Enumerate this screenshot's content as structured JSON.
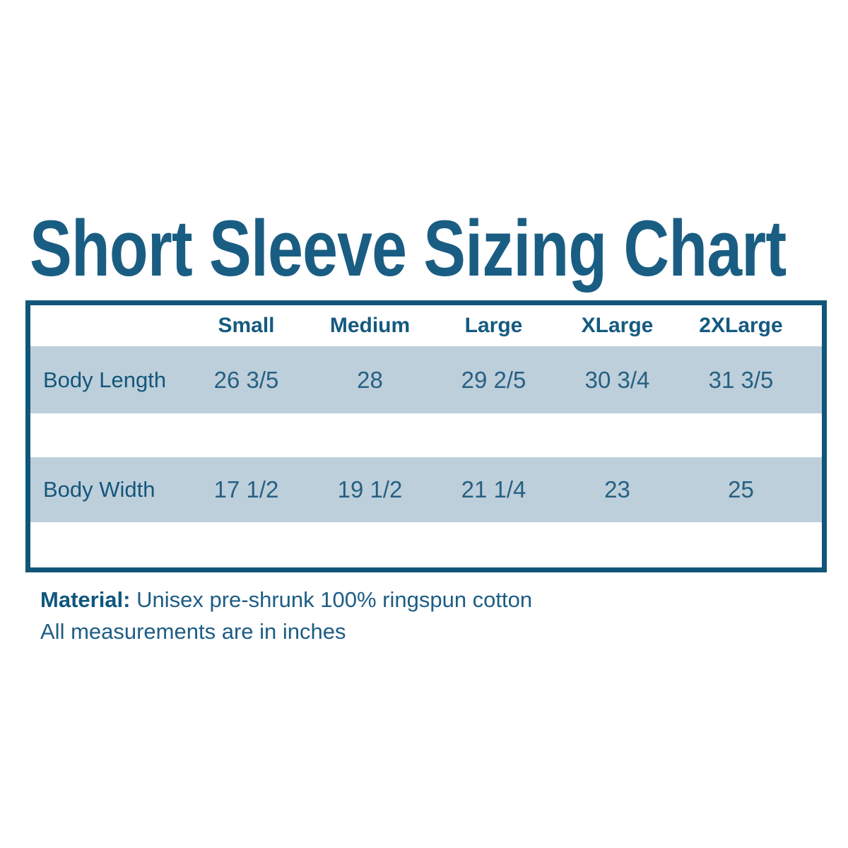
{
  "title": "Short Sleeve Sizing Chart",
  "colors": {
    "accent_dark_teal": "#115679",
    "title_teal": "#1a5d83",
    "header_text_teal": "#155a80",
    "value_text_teal": "#266083",
    "stripe_blue": "#bdcfda",
    "background": "#ffffff"
  },
  "table": {
    "columns": [
      "Small",
      "Medium",
      "Large",
      "XLarge",
      "2XLarge"
    ],
    "rows": [
      {
        "label": "Body Length",
        "values": [
          "26 3/5",
          "28",
          "29 2/5",
          "30 3/4",
          "31 3/5"
        ]
      },
      {
        "label": "Body Width",
        "values": [
          "17 1/2",
          "19 1/2",
          "21 1/4",
          "23",
          "25"
        ]
      }
    ]
  },
  "footer": {
    "material_label": "Material:",
    "material_value": " Unisex pre-shrunk 100% ringspun cotton",
    "note": "All measurements are in inches"
  },
  "chart_data": {
    "type": "table",
    "title": "Short Sleeve Sizing Chart",
    "columns": [
      "Small",
      "Medium",
      "Large",
      "XLarge",
      "2XLarge"
    ],
    "rows": [
      {
        "label": "Body Length",
        "values": [
          "26 3/5",
          "28",
          "29 2/5",
          "30 3/4",
          "31 3/5"
        ]
      },
      {
        "label": "Body Width",
        "values": [
          "17 1/2",
          "19 1/2",
          "21 1/4",
          "23",
          "25"
        ]
      }
    ],
    "notes": [
      "Material: Unisex pre-shrunk 100% ringspun cotton",
      "All measurements are in inches"
    ],
    "units": "inches"
  }
}
